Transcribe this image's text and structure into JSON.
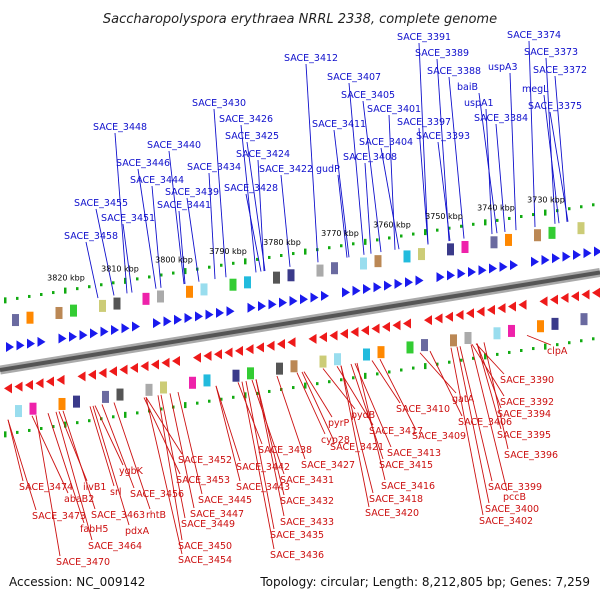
{
  "title": "Saccharopolyspora erythraea NRRL 2338, complete genome",
  "footer": {
    "accession": "Accession: NC_009142",
    "summary": "Topology: circular; Length: 8,212,805 bp; Genes: 7,259"
  },
  "colors": {
    "forward_label": "#1010cc",
    "reverse_label": "#cc1010",
    "forward_arrow": "#1a1aee",
    "reverse_arrow": "#ee1a1a",
    "backbone": "#888888",
    "tick": "#11aa11"
  },
  "kbp_marks": [
    "3730 kbp",
    "3740 kbp",
    "3750 kbp",
    "3760 kbp",
    "3770 kbp",
    "3780 kbp",
    "3790 kbp",
    "3800 kbp",
    "3810 kbp",
    "3820 kbp"
  ],
  "forward_labels": [
    "SACE_3374",
    "SACE_3373",
    "SACE_3372",
    "megL",
    "SACE_3375",
    "uspA3",
    "SACE_3391",
    "SACE_3389",
    "SACE_3388",
    "baiB",
    "uspA1",
    "SACE_3384",
    "SACE_3412",
    "SACE_3407",
    "SACE_3405",
    "SACE_3401",
    "SACE_3397",
    "SACE_3393",
    "SACE_3411",
    "SACE_3404",
    "SACE_3408",
    "gudP",
    "SACE_3430",
    "SACE_3426",
    "SACE_3425",
    "SACE_3424",
    "SACE_3422",
    "SACE_3448",
    "SACE_3440",
    "SACE_3446",
    "SACE_3434",
    "SACE_3444",
    "SACE_3439",
    "SACE_3428",
    "SACE_3455",
    "SACE_3441",
    "SACE_3451",
    "SACE_3458"
  ],
  "reverse_labels": [
    "clpA",
    "SACE_3390",
    "SACE_3392",
    "gatA",
    "SACE_3394",
    "SACE_3410",
    "SACE_3406",
    "SACE_3409",
    "SACE_3395",
    "pyrP",
    "pydB",
    "SACE_3417",
    "SACE_3396",
    "cyp28",
    "SACE_3421",
    "SACE_3413",
    "SACE_3438",
    "SACE_3427",
    "SACE_3415",
    "SACE_3452",
    "SACE_3442",
    "ygbK",
    "SACE_3431",
    "SACE_3453",
    "SACE_3443",
    "SACE_3416",
    "SACE_3399",
    "pccB",
    "SACE_3474",
    "ilvB1",
    "SACE_3456",
    "rhtB",
    "SACE_3445",
    "SACE_3432",
    "SACE_3418",
    "abaB2",
    "srl",
    "SACE_3473",
    "SACE_3463",
    "fabH5",
    "SACE_3447",
    "SACE_3420",
    "SACE_3400",
    "pdxA",
    "SACE_3449",
    "SACE_3433",
    "SACE_3402",
    "SACE_3464",
    "SACE_3450",
    "SACE_3435",
    "SACE_3436",
    "SACE_3454",
    "SACE_3470"
  ]
}
